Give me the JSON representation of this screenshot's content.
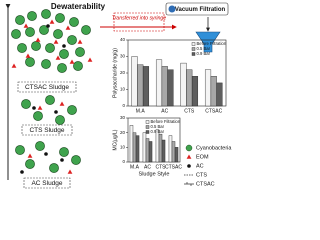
{
  "header": {
    "title": "Dewaterability"
  },
  "annotations": {
    "transfer": "Transferred into syringe",
    "vacuum": "Vacuum Filtration"
  },
  "sludges": [
    "CTSAC Sludge",
    "CTS Sludge",
    "AC Sludge"
  ],
  "legend": [
    "Cyanobacteria",
    "EOM",
    "AC",
    "CTS",
    "CTSAC"
  ],
  "chart_data": [
    {
      "type": "bar",
      "ylabel": "Polysaccharide (mg/g)",
      "categories": [
        "M.A",
        "AC",
        "CTS",
        "CTSAC"
      ],
      "series": [
        {
          "name": "Before Filtration",
          "color": "#f4f4f4",
          "values": [
            30,
            28,
            26,
            22
          ]
        },
        {
          "name": "0.5 Bar",
          "color": "#a8a8a8",
          "values": [
            25,
            24,
            22,
            18
          ]
        },
        {
          "name": "0.9 Bar",
          "color": "#5e5e5e",
          "values": [
            24,
            22,
            18,
            14
          ]
        }
      ],
      "ylim": [
        0,
        40
      ],
      "yticks": [
        0,
        10,
        20,
        30,
        40
      ],
      "legend": "upper right"
    },
    {
      "type": "bar",
      "ylabel": "MC(μg/L)",
      "xlabel": "Sludge Style",
      "categories": [
        "M.A",
        "AC",
        "CTS",
        "CTSAC"
      ],
      "series": [
        {
          "name": "Before Filtration",
          "color": "#f4f4f4",
          "values": [
            25,
            20,
            22,
            18
          ]
        },
        {
          "name": "0.5 Bar",
          "color": "#a8a8a8",
          "values": [
            20,
            16,
            19,
            14
          ]
        },
        {
          "name": "0.9 Bar",
          "color": "#5e5e5e",
          "values": [
            18,
            14,
            15,
            10
          ]
        }
      ],
      "ylim": [
        0,
        30
      ],
      "yticks": [
        0,
        10,
        20,
        30
      ],
      "legend": "upper right"
    }
  ]
}
